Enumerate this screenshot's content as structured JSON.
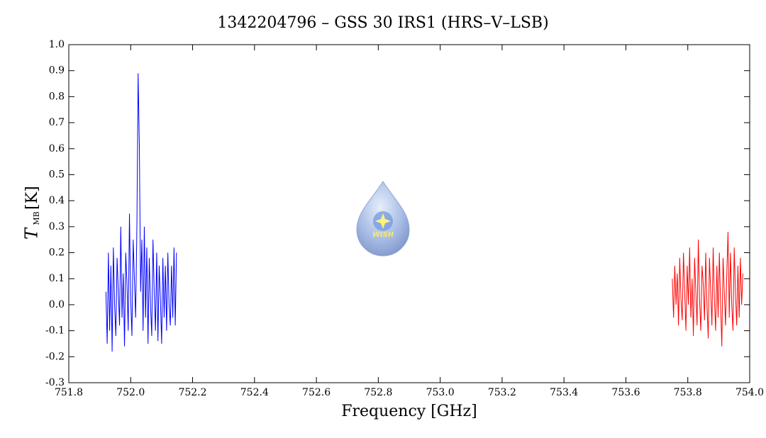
{
  "chart_data": {
    "type": "line",
    "title": "1342204796 – GSS 30 IRS1 (HRS–V–LSB)",
    "xlabel": "Frequency [GHz]",
    "ylabel": {
      "symbol": "T",
      "subscript": "MB",
      "unit": "[K]"
    },
    "logo_text": "WISH",
    "xlim": [
      751.8,
      754.0
    ],
    "ylim": [
      -0.3,
      1.0
    ],
    "xticks": [
      751.8,
      {
        "value": 752,
        "label": "752.0"
      },
      752.2,
      752.4,
      752.6,
      752.8,
      {
        "value": 753,
        "label": "753.0"
      },
      753.2,
      753.4,
      753.6,
      753.8,
      {
        "value": 754,
        "label": "754.0"
      }
    ],
    "yticks": [
      -0.3,
      -0.2,
      -0.1,
      {
        "value": 0,
        "label": "0.0"
      },
      0.1,
      0.2,
      0.3,
      0.4,
      0.5,
      0.6,
      0.7,
      0.8,
      0.9,
      {
        "value": 1,
        "label": "1.0"
      }
    ],
    "series": [
      {
        "color": "#0000ff",
        "x": [
          751.92,
          751.924,
          751.928,
          751.932,
          751.936,
          751.94,
          751.944,
          751.948,
          751.952,
          751.956,
          751.96,
          751.964,
          751.968,
          751.972,
          751.976,
          751.98,
          751.984,
          751.988,
          751.992,
          751.996,
          752,
          752.004,
          752.008,
          752.012,
          752.016,
          752.02,
          752.024,
          752.028,
          752.032,
          752.036,
          752.04,
          752.044,
          752.048,
          752.052,
          752.056,
          752.06,
          752.064,
          752.068,
          752.072,
          752.076,
          752.08,
          752.084,
          752.088,
          752.092,
          752.096,
          752.1,
          752.104,
          752.108,
          752.112,
          752.116,
          752.12,
          752.124,
          752.128,
          752.132,
          752.136,
          752.14,
          752.144,
          752.148
        ],
        "values": [
          0.05,
          -0.15,
          0.2,
          -0.1,
          0.15,
          -0.18,
          0.22,
          0,
          -0.12,
          0.18,
          0.05,
          -0.08,
          0.3,
          -0.05,
          0.12,
          -0.16,
          0.2,
          0.08,
          -0.1,
          0.35,
          0.02,
          -0.12,
          0.25,
          0.1,
          -0.05,
          0.3,
          0.89,
          0.61,
          0.05,
          0.25,
          -0.1,
          0.3,
          -0.05,
          0.22,
          -0.15,
          0.18,
          0,
          -0.12,
          0.25,
          0.05,
          -0.1,
          0.2,
          -0.14,
          0.15,
          0.02,
          -0.15,
          0.18,
          -0.05,
          0.15,
          -0.1,
          0.2,
          0,
          -0.08,
          0.15,
          -0.05,
          0.22,
          -0.08,
          0.2
        ]
      },
      {
        "color": "#ff0000",
        "x": [
          753.75,
          753.754,
          753.758,
          753.762,
          753.766,
          753.77,
          753.774,
          753.778,
          753.782,
          753.786,
          753.79,
          753.794,
          753.798,
          753.802,
          753.806,
          753.81,
          753.814,
          753.818,
          753.822,
          753.826,
          753.83,
          753.834,
          753.838,
          753.842,
          753.846,
          753.85,
          753.854,
          753.858,
          753.862,
          753.866,
          753.87,
          753.874,
          753.878,
          753.882,
          753.886,
          753.89,
          753.894,
          753.898,
          753.902,
          753.906,
          753.91,
          753.914,
          753.918,
          753.922,
          753.926,
          753.93,
          753.934,
          753.938,
          753.942,
          753.946,
          753.95,
          753.954,
          753.958,
          753.962,
          753.966,
          753.97,
          753.974,
          753.978
        ],
        "values": [
          0.1,
          -0.05,
          0.15,
          0,
          0.12,
          -0.08,
          0.18,
          0.02,
          -0.06,
          0.2,
          0.05,
          -0.1,
          0.15,
          0,
          0.22,
          -0.05,
          0.1,
          -0.12,
          0.18,
          0.05,
          -0.08,
          0.25,
          0.02,
          -0.1,
          0.15,
          0.08,
          -0.06,
          0.2,
          0,
          -0.13,
          0.18,
          0.05,
          -0.08,
          0.22,
          0.02,
          -0.1,
          0.15,
          -0.05,
          0.2,
          0,
          -0.16,
          0.18,
          0.05,
          -0.08,
          0.12,
          0.28,
          -0.05,
          0.2,
          0,
          -0.1,
          0.22,
          0.05,
          -0.08,
          0.15,
          -0.05,
          0.18,
          0,
          0.12
        ]
      }
    ]
  }
}
